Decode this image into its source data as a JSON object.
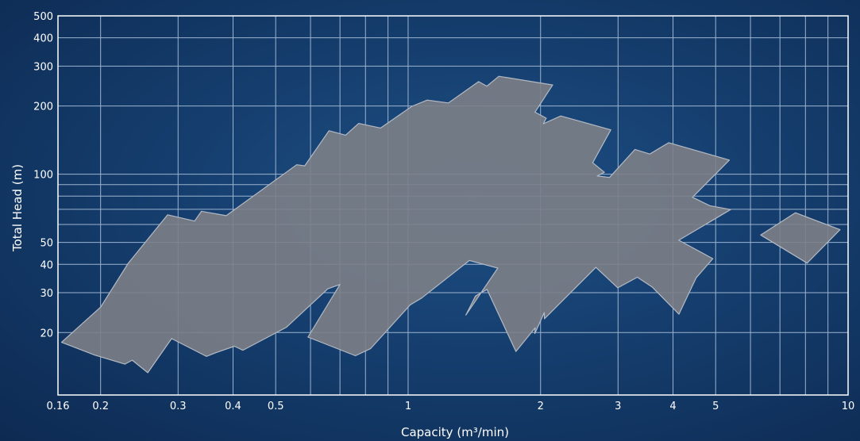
{
  "chart_data": {
    "type": "area",
    "title": "",
    "xlabel": "Capacity (m³/min)",
    "ylabel": "Total Head (m)",
    "x_scale": "log",
    "y_scale": "log",
    "xlim": [
      0.16,
      10
    ],
    "ylim": [
      10.6,
      500
    ],
    "grid": true,
    "legend": "none",
    "x_ticks": [
      {
        "value": 0.16,
        "label": "0.16"
      },
      {
        "value": 0.2,
        "label": "0.2"
      },
      {
        "value": 0.3,
        "label": "0.3"
      },
      {
        "value": 0.4,
        "label": "0.4"
      },
      {
        "value": 0.5,
        "label": "0.5"
      },
      {
        "value": 1,
        "label": "1"
      },
      {
        "value": 2,
        "label": "2"
      },
      {
        "value": 3,
        "label": "3"
      },
      {
        "value": 4,
        "label": "4"
      },
      {
        "value": 5,
        "label": "5"
      },
      {
        "value": 10,
        "label": "10"
      }
    ],
    "y_ticks": [
      {
        "value": 20,
        "label": "20"
      },
      {
        "value": 30,
        "label": "30"
      },
      {
        "value": 40,
        "label": "40"
      },
      {
        "value": 50,
        "label": "50"
      },
      {
        "value": 100,
        "label": "100"
      },
      {
        "value": 200,
        "label": "200"
      },
      {
        "value": 300,
        "label": "300"
      },
      {
        "value": 400,
        "label": "400"
      },
      {
        "value": 500,
        "label": "500"
      }
    ],
    "x_gridlines": [
      0.2,
      0.3,
      0.4,
      0.5,
      0.6,
      0.7,
      0.8,
      0.9,
      1,
      2,
      3,
      4,
      5,
      6,
      7,
      8,
      9
    ],
    "y_gridlines": [
      20,
      30,
      40,
      50,
      60,
      70,
      80,
      90,
      100,
      200,
      300,
      400
    ],
    "series": [
      {
        "values": [
          [
            0.163,
            18.1
          ],
          [
            0.2,
            25.9
          ],
          [
            0.231,
            40.4
          ],
          [
            0.284,
            66.2
          ],
          [
            0.327,
            62.1
          ],
          [
            0.339,
            68.6
          ],
          [
            0.386,
            65.6
          ],
          [
            0.558,
            110.1
          ],
          [
            0.582,
            108.9
          ],
          [
            0.661,
            155.6
          ],
          [
            0.721,
            148.7
          ],
          [
            0.772,
            167.6
          ],
          [
            0.866,
            159.9
          ],
          [
            1.02,
            199.5
          ],
          [
            1.105,
            212.4
          ],
          [
            1.235,
            206.3
          ],
          [
            1.446,
            256.2
          ],
          [
            1.51,
            244.7
          ],
          [
            1.608,
            270.5
          ],
          [
            2.131,
            247.8
          ],
          [
            1.942,
            187.9
          ],
          [
            2.06,
            176.7
          ],
          [
            2.029,
            167.0
          ],
          [
            2.223,
            180.8
          ],
          [
            2.889,
            157.0
          ],
          [
            2.627,
            112.3
          ],
          [
            2.793,
            102.0
          ],
          [
            2.691,
            98.2
          ],
          [
            2.869,
            96.8
          ],
          [
            3.278,
            128.6
          ],
          [
            3.543,
            122.8
          ],
          [
            3.911,
            137.7
          ],
          [
            5.373,
            115.5
          ],
          [
            4.431,
            79.1
          ],
          [
            4.848,
            72.6
          ],
          [
            5.408,
            69.8
          ],
          [
            4.122,
            51.1
          ],
          [
            4.928,
            42.4
          ],
          [
            4.515,
            34.9
          ],
          [
            4.127,
            24.1
          ],
          [
            3.584,
            31.8
          ],
          [
            3.319,
            35.1
          ],
          [
            2.996,
            31.5
          ],
          [
            2.672,
            38.8
          ],
          [
            2.041,
            23.0
          ],
          [
            2.039,
            24.5
          ],
          [
            1.941,
            19.8
          ],
          [
            1.945,
            21.0
          ],
          [
            1.758,
            16.5
          ],
          [
            1.511,
            31.0
          ],
          [
            1.423,
            29.0
          ],
          [
            1.353,
            23.9
          ],
          [
            1.599,
            38.5
          ],
          [
            1.378,
            41.6
          ],
          [
            1.073,
            28.4
          ],
          [
            1.011,
            26.5
          ],
          [
            0.822,
            17.0
          ],
          [
            0.759,
            15.8
          ],
          [
            0.592,
            19.1
          ],
          [
            0.7,
            32.6
          ],
          [
            0.657,
            31.2
          ],
          [
            0.529,
            21.1
          ],
          [
            0.421,
            16.7
          ],
          [
            0.403,
            17.4
          ],
          [
            0.366,
            16.3
          ],
          [
            0.348,
            15.7
          ],
          [
            0.29,
            18.8
          ],
          [
            0.256,
            13.3
          ],
          [
            0.236,
            15.1
          ],
          [
            0.227,
            14.5
          ],
          [
            0.194,
            15.9
          ]
        ]
      },
      {
        "values": [
          [
            6.33,
            53.9
          ],
          [
            7.59,
            67.6
          ],
          [
            9.59,
            56.9
          ],
          [
            8.07,
            40.5
          ]
        ]
      }
    ]
  },
  "style": {
    "plot_background": "#153e6e",
    "grid_color": "#9cb3cf",
    "axis_color": "#ffffff",
    "region_fill": "#7c7f87",
    "region_stroke": "#b4bac3",
    "text_color": "#ffffff"
  }
}
